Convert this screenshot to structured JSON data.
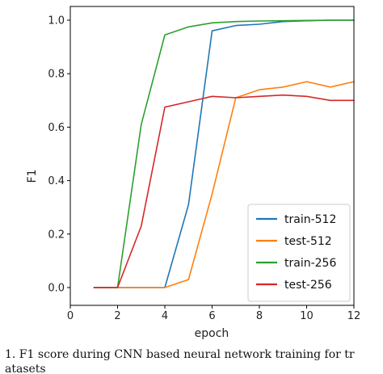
{
  "chart_data": {
    "type": "line",
    "xlabel": "epoch",
    "ylabel": "F1",
    "xlim": [
      0,
      12
    ],
    "ylim": [
      0,
      1.0
    ],
    "xticks": [
      "0",
      "2",
      "4",
      "6",
      "8",
      "10",
      "12"
    ],
    "yticks": [
      "0.0",
      "0.2",
      "0.4",
      "0.6",
      "0.8",
      "1.0"
    ],
    "legend_position": "lower-right",
    "grid": false,
    "series": [
      {
        "name": "train-512",
        "color": "#1f77b4",
        "x": [
          1,
          2,
          3,
          4,
          5,
          6,
          7,
          8,
          9,
          10,
          11,
          12
        ],
        "y": [
          0.0,
          0.0,
          0.0,
          0.0,
          0.31,
          0.96,
          0.98,
          0.985,
          0.995,
          0.998,
          1.0,
          1.0
        ]
      },
      {
        "name": "test-512",
        "color": "#ff7f0e",
        "x": [
          1,
          2,
          3,
          4,
          5,
          6,
          7,
          8,
          9,
          10,
          11,
          12
        ],
        "y": [
          0.0,
          0.0,
          0.0,
          0.0,
          0.03,
          0.35,
          0.71,
          0.74,
          0.75,
          0.77,
          0.75,
          0.77
        ]
      },
      {
        "name": "train-256",
        "color": "#2ca02c",
        "x": [
          1,
          2,
          3,
          4,
          5,
          6,
          7,
          8,
          9,
          10,
          11,
          12
        ],
        "y": [
          0.0,
          0.0,
          0.61,
          0.945,
          0.975,
          0.99,
          0.995,
          0.997,
          0.998,
          0.999,
          1.0,
          1.0
        ]
      },
      {
        "name": "test-256",
        "color": "#d62728",
        "x": [
          1,
          2,
          3,
          4,
          5,
          6,
          7,
          8,
          9,
          10,
          11,
          12
        ],
        "y": [
          0.0,
          0.0,
          0.23,
          0.675,
          0.695,
          0.715,
          0.71,
          0.715,
          0.72,
          0.715,
          0.7,
          0.7
        ]
      }
    ]
  },
  "caption": {
    "line1": "1.   F1 score during CNN based neural network training for tr",
    "line2": "atasets"
  }
}
